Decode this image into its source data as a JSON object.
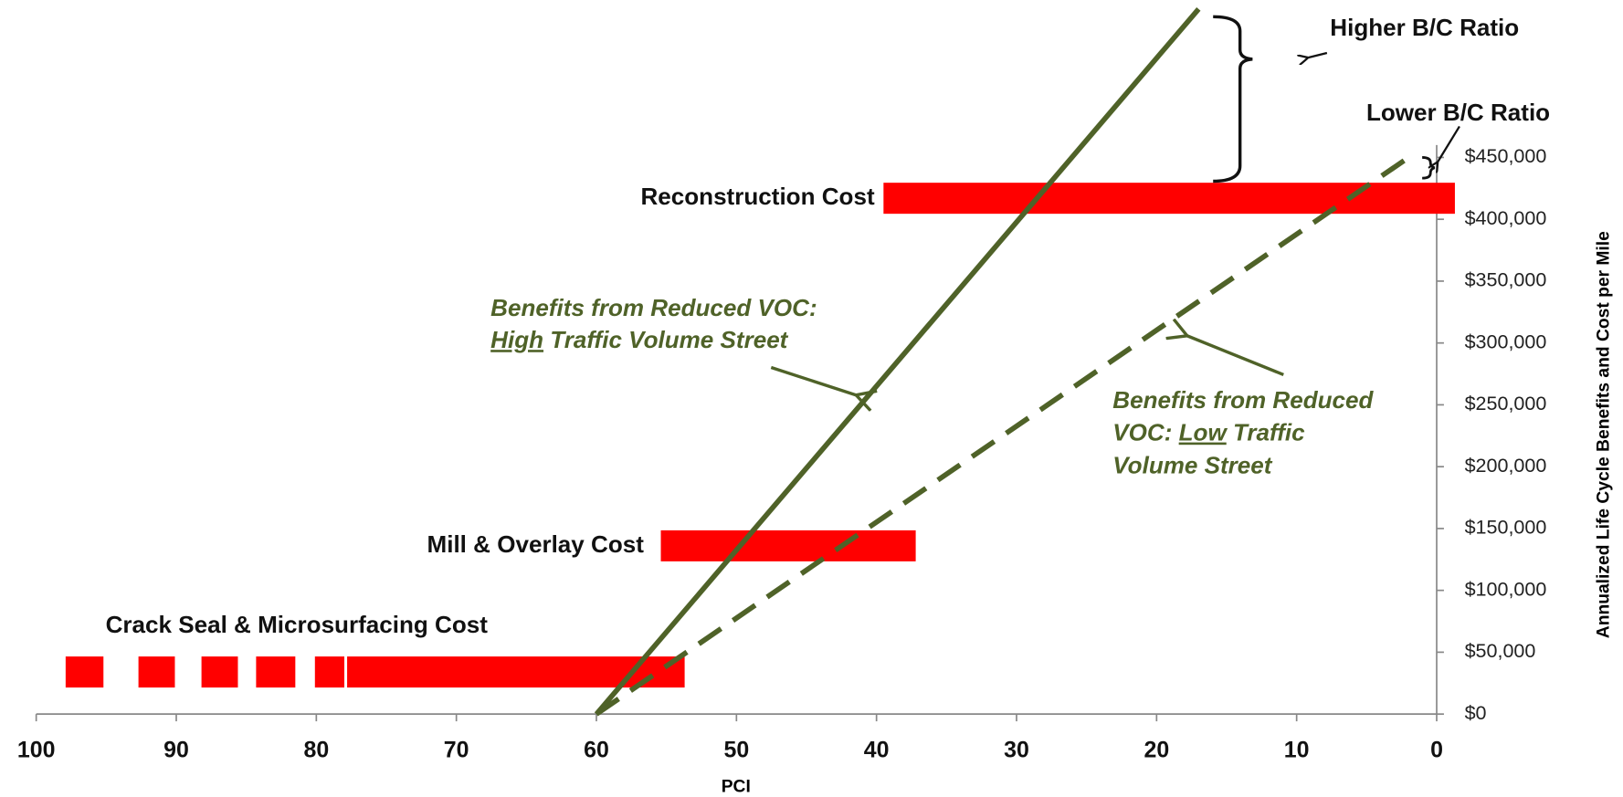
{
  "chart_data": {
    "type": "benefit-cost",
    "xlabel": "PCI",
    "ylabel": "Annualized Life Cycle Benefits and Cost per Mile",
    "xlim": [
      100,
      0
    ],
    "ylim": [
      0,
      450000
    ],
    "xticks": [
      100,
      90,
      80,
      70,
      60,
      50,
      40,
      30,
      20,
      10,
      0
    ],
    "yticks": [
      {
        "value": 0,
        "label": "$0"
      },
      {
        "value": 50000,
        "label": "$50,000"
      },
      {
        "value": 100000,
        "label": "$100,000"
      },
      {
        "value": 150000,
        "label": "$150,000"
      },
      {
        "value": 200000,
        "label": "$200,000"
      },
      {
        "value": 250000,
        "label": "$250,000"
      },
      {
        "value": 300000,
        "label": "$300,000"
      },
      {
        "value": 350000,
        "label": "$350,000"
      },
      {
        "value": 400000,
        "label": "$400,000"
      },
      {
        "value": 450000,
        "label": "$450,000"
      }
    ],
    "bar_color": "#ff0000",
    "cost_bars": [
      {
        "label": "Reconstruction Cost",
        "value": 417000,
        "segments": [
          [
            39.5,
            -1.3
          ]
        ]
      },
      {
        "label": "Mill & Overlay Cost",
        "value": 136000,
        "segments": [
          [
            55.4,
            37.2
          ]
        ]
      },
      {
        "label": "Crack Seal & Microsurfacing Cost",
        "value": 34000,
        "segments": [
          [
            97.9,
            95.2
          ],
          [
            92.7,
            90.1
          ],
          [
            88.2,
            85.6
          ],
          [
            84.3,
            81.5
          ],
          [
            80.1,
            78.0
          ],
          [
            77.8,
            53.7
          ]
        ]
      }
    ],
    "lines": [
      {
        "x": [
          60,
          17
        ],
        "values": [
          0,
          570000
        ],
        "color": "#4f6228",
        "dashed": false
      },
      {
        "x": [
          60,
          2
        ],
        "values": [
          0,
          450000
        ],
        "color": "#4f6228",
        "dashed": true
      }
    ],
    "annotations": [
      {
        "lines": [
          [
            {
              "text": "Higher B/C Ratio"
            }
          ]
        ]
      },
      {
        "lines": [
          [
            {
              "text": "Lower B/C Ratio"
            }
          ]
        ]
      },
      {
        "lines": [
          [
            {
              "text": "Benefits from Reduced VOC:"
            }
          ],
          [
            {
              "text": "High",
              "underline": true
            },
            {
              "text": " Traffic Volume Street"
            }
          ]
        ]
      },
      {
        "lines": [
          [
            {
              "text": "Benefits from Reduced"
            }
          ],
          [
            {
              "text": "VOC: "
            },
            {
              "text": "Low",
              "underline": true
            },
            {
              "text": " Traffic"
            }
          ],
          [
            {
              "text": "Volume Street"
            }
          ]
        ]
      }
    ]
  }
}
